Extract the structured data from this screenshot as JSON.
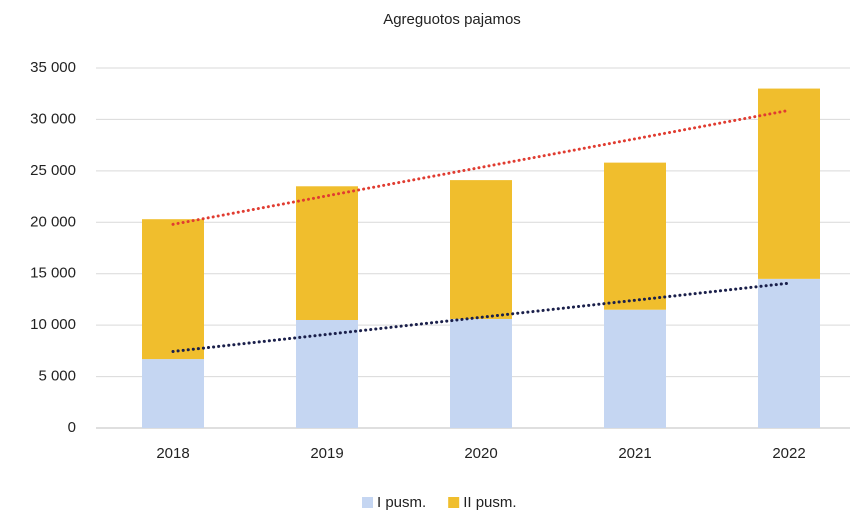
{
  "chart_data": {
    "type": "stacked_bar",
    "title": "Agreguotos pajamos",
    "categories": [
      "2018",
      "2019",
      "2020",
      "2021",
      "2022"
    ],
    "series": [
      {
        "name": "I pusm.",
        "color": "#c5d6f2",
        "values": [
          6700,
          10500,
          10600,
          11500,
          14500
        ],
        "trend_color": "#1a1f4a"
      },
      {
        "name": "II pusm.",
        "color": "#f0be2d",
        "values": [
          13600,
          13000,
          13500,
          14300,
          18500
        ],
        "trend_color": "#e03c31"
      }
    ],
    "ylim": [
      0,
      35000
    ],
    "yticks": [
      0,
      {
        "value": 5000,
        "label": "5 000"
      },
      {
        "value": 10000,
        "label": "10 000"
      },
      {
        "value": 15000,
        "label": "15 000"
      },
      {
        "value": 20000,
        "label": "20 000"
      },
      {
        "value": 25000,
        "label": "25 000"
      },
      {
        "value": 30000,
        "label": "30 000"
      },
      {
        "value": 35000,
        "label": "35 000"
      }
    ],
    "grid": true,
    "trendlines": true,
    "legend": "bottom"
  }
}
